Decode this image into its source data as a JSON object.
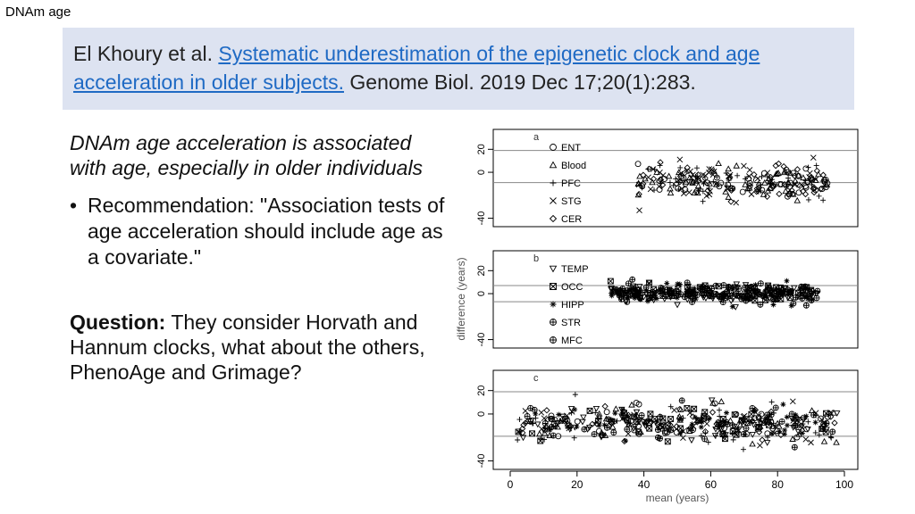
{
  "header": {
    "slide_label": "DNAm age"
  },
  "citation": {
    "authors": "El Khoury et al.",
    "title": "Systematic underestimation of the epigenetic clock and age acceleration in older subjects.",
    "journal": "Genome Biol. 2019 Dec 17;20(1):283."
  },
  "left_panel": {
    "finding": "DNAm age acceleration is associated with age, especially in older individuals",
    "bullet": "Recommendation: \"Association tests of age acceleration should include age as a covariate.\"",
    "question_label": "Question:",
    "question_text": "They consider Horvath and Hannum clocks, what about the others, PhenoAge and Grimage?"
  },
  "chart_data": {
    "type": "scatter",
    "title": "",
    "xlabel": "mean (years)",
    "ylabel": "difference (years)",
    "xlim": [
      0,
      100
    ],
    "xticks": [
      "0",
      "20",
      "40",
      "60",
      "80",
      "100"
    ],
    "panels": [
      {
        "label": "a",
        "ylim": [
          -45,
          35
        ],
        "yticks": [
          "-40",
          "0",
          "20"
        ],
        "hlines": [
          19,
          -9
        ],
        "legend": [
          {
            "name": "ENT",
            "marker": "circle"
          },
          {
            "name": "Blood",
            "marker": "triangle-up"
          },
          {
            "name": "PFC",
            "marker": "plus"
          },
          {
            "name": "STG",
            "marker": "cross"
          },
          {
            "name": "CER",
            "marker": "diamond"
          }
        ],
        "cluster": {
          "x_range": [
            38,
            95
          ],
          "center_y": -8,
          "spread": 12,
          "n": 260
        }
      },
      {
        "label": "b",
        "ylim": [
          -45,
          35
        ],
        "yticks": [
          "-40",
          "0",
          "20"
        ],
        "hlines": [
          7,
          -7
        ],
        "legend": [
          {
            "name": "TEMP",
            "marker": "triangle-down"
          },
          {
            "name": "OCC",
            "marker": "boxed-x"
          },
          {
            "name": "HIPP",
            "marker": "asterisk"
          },
          {
            "name": "STR",
            "marker": "circle-plus"
          },
          {
            "name": "MFC",
            "marker": "circle-plus"
          }
        ],
        "cluster": {
          "x_range": [
            30,
            92
          ],
          "center_y": 0,
          "spread": 4,
          "n": 320
        }
      },
      {
        "label": "c",
        "ylim": [
          -45,
          35
        ],
        "yticks": [
          "-40",
          "0",
          "20"
        ],
        "hlines": [
          19,
          -19
        ],
        "legend": [],
        "cluster": {
          "x_range": [
            2,
            98
          ],
          "center_y": -8,
          "spread": 13,
          "n": 420
        }
      }
    ]
  }
}
